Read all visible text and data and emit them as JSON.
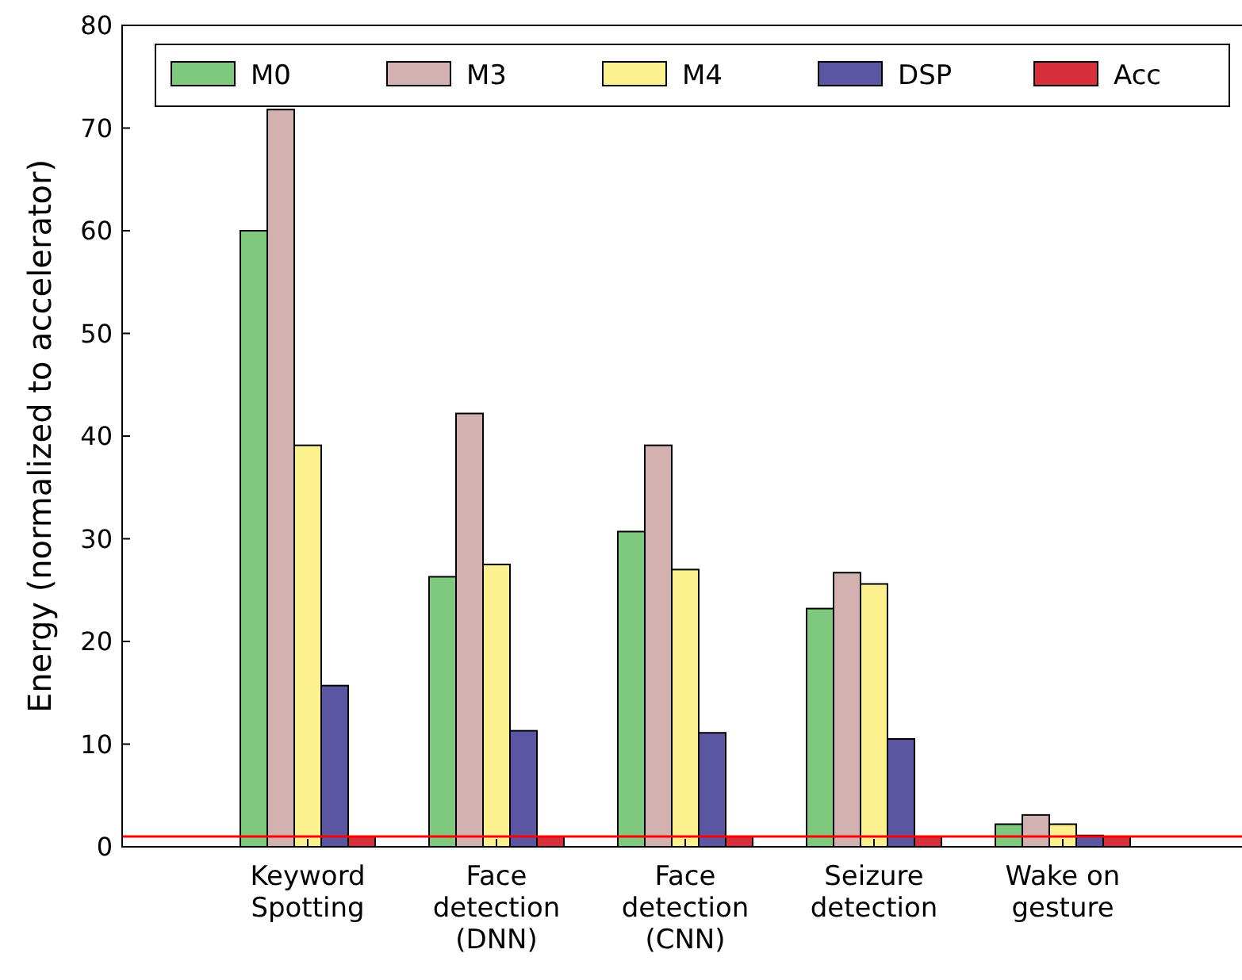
{
  "chart_data": {
    "type": "bar",
    "ylabel": "Energy (normalized to accelerator)",
    "categories": [
      "Keyword\nSpotting",
      "Face\ndetection\n(DNN)",
      "Face\ndetection\n(CNN)",
      "Seizure\ndetection",
      "Wake on\ngesture"
    ],
    "series": [
      {
        "name": "M0",
        "color": "#7fc97f",
        "values": [
          60,
          26.3,
          30.7,
          23.2,
          2.2
        ]
      },
      {
        "name": "M3",
        "color": "#d4b1b1",
        "values": [
          71.8,
          42.2,
          39.1,
          26.7,
          3.1
        ]
      },
      {
        "name": "M4",
        "color": "#fdf08f",
        "values": [
          39.1,
          27.5,
          27,
          25.6,
          2.2
        ]
      },
      {
        "name": "DSP",
        "color": "#5a56a2",
        "values": [
          15.7,
          11.3,
          11.1,
          10.5,
          1.1
        ]
      },
      {
        "name": "Acc",
        "color": "#d7303c",
        "values": [
          1,
          1,
          1,
          1,
          1
        ]
      }
    ],
    "ylim": [
      0,
      80
    ],
    "yticks": [
      0,
      10,
      20,
      30,
      40,
      50,
      60,
      70,
      80
    ],
    "ref_lines": [
      {
        "axis": "y",
        "value": 1,
        "color": "#ff0000"
      }
    ],
    "legend": "top",
    "grid": false
  }
}
